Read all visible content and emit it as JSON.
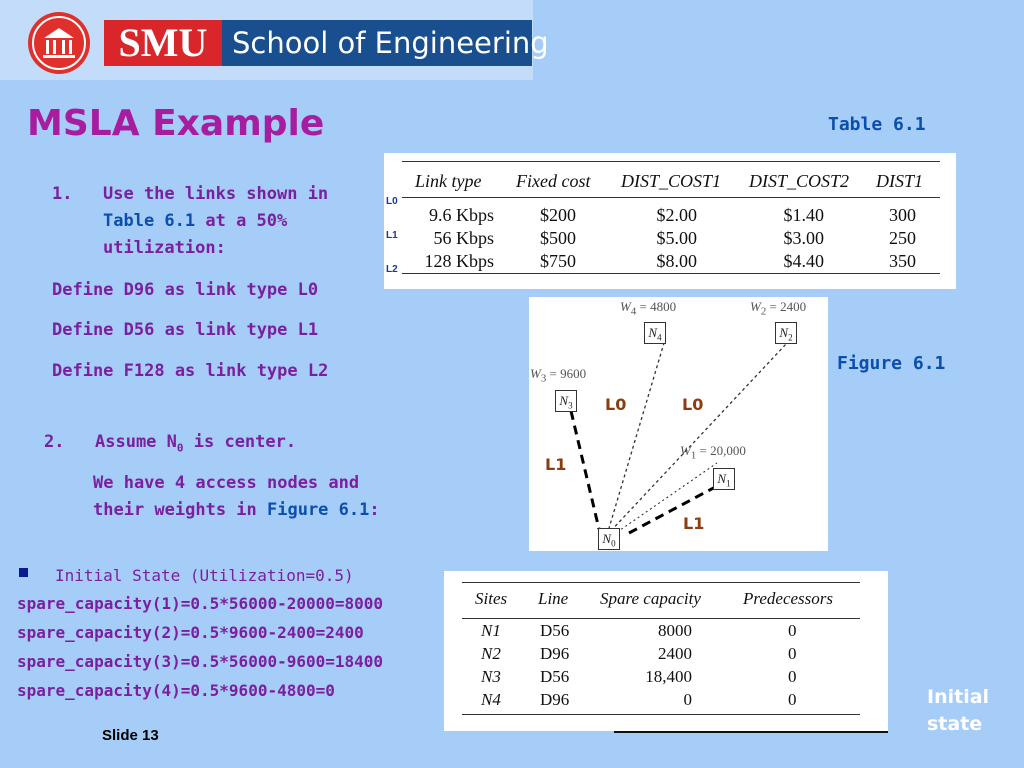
{
  "banner": {
    "brand": "SMU",
    "school": "School of Engineering"
  },
  "title": "MSLA Example",
  "table_caption": "Table 6.1",
  "figure_caption": "Figure 6.1",
  "step1": {
    "number": "1.",
    "line1": "Use the links shown in",
    "ref": "Table 6.1",
    "line2_rest": " at a 50%",
    "line3": "utilization:"
  },
  "definitions": [
    "Define D96 as link type L0",
    "Define D56 as link type L1",
    "Define F128 as link type L2"
  ],
  "step2": {
    "number": "2.",
    "text_a": "Assume N",
    "sub": "0",
    "text_b": " is center.",
    "line2": "We have 4 access nodes and",
    "line3_a": "their weights in ",
    "ref": "Figure 6.1",
    "line3_b": ":"
  },
  "initial_heading": "Initial State (Utilization=0.5)",
  "spare_capacity_lines": [
    "spare_capacity(1)=0.5*56000-20000=8000",
    "spare_capacity(2)=0.5*9600-2400=2400",
    "spare_capacity(3)=0.5*56000-9600=18400",
    "spare_capacity(4)=0.5*9600-4800=0"
  ],
  "slide_number": "Slide 13",
  "initial_state_label": [
    "Initial",
    "state"
  ],
  "table1": {
    "headers": [
      "Link type",
      "Fixed cost",
      "DIST_COST1",
      "DIST_COST2",
      "DIST1"
    ],
    "row_tags": [
      "L0",
      "L1",
      "L2"
    ],
    "rows": [
      [
        "9.6 Kbps",
        "$200",
        "$2.00",
        "$1.40",
        "300"
      ],
      [
        "56 Kbps",
        "$500",
        "$5.00",
        "$3.00",
        "250"
      ],
      [
        "128 Kbps",
        "$750",
        "$8.00",
        "$4.40",
        "350"
      ]
    ]
  },
  "figure1": {
    "nodes": {
      "n0": "N",
      "n1": "N",
      "n2": "N",
      "n3": "N",
      "n4": "N"
    },
    "weights": {
      "w1": "W",
      "w1_sub": "1",
      "w1_val": " = 20,000",
      "w2": "W",
      "w2_sub": "2",
      "w2_val": " = 2400",
      "w3": "W",
      "w3_sub": "3",
      "w3_val": " = 9600",
      "w4": "W",
      "w4_sub": "4",
      "w4_val": " = 4800"
    },
    "link_labels": [
      "L0",
      "L0",
      "L1",
      "L1"
    ]
  },
  "table2": {
    "headers": [
      "Sites",
      "Line",
      "Spare capacity",
      "Predecessors"
    ],
    "rows": [
      [
        "N1",
        "D56",
        "8000",
        "0"
      ],
      [
        "N2",
        "D96",
        "2400",
        "0"
      ],
      [
        "N3",
        "D56",
        "18,400",
        "0"
      ],
      [
        "N4",
        "D96",
        "0",
        "0"
      ]
    ]
  },
  "colors": {
    "background": "#a6ccf8",
    "title": "#a81ca0",
    "body_text": "#7b1fa0",
    "reference_blue": "#0b4fae",
    "smu_red": "#d8262a",
    "smu_blue": "#1a4f8f"
  }
}
